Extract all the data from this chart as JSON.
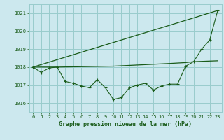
{
  "title": "Graphe pression niveau de la mer (hPa)",
  "background_color": "#cce8ee",
  "grid_color": "#99cccc",
  "line_color": "#1a5c1a",
  "xlim": [
    -0.5,
    23.5
  ],
  "ylim": [
    1015.5,
    1021.5
  ],
  "yticks": [
    1016,
    1017,
    1018,
    1019,
    1020,
    1021
  ],
  "xticks": [
    0,
    1,
    2,
    3,
    4,
    5,
    6,
    7,
    8,
    9,
    10,
    11,
    12,
    13,
    14,
    15,
    16,
    17,
    18,
    19,
    20,
    21,
    22,
    23
  ],
  "series1_x": [
    0,
    1,
    2,
    3,
    4,
    5,
    6,
    7,
    8,
    9,
    10,
    11,
    12,
    13,
    14,
    15,
    16,
    17,
    18,
    19,
    20,
    21,
    22,
    23
  ],
  "series1_y": [
    1018.0,
    1017.7,
    1017.95,
    1018.0,
    1017.2,
    1017.1,
    1016.95,
    1016.85,
    1017.3,
    1016.85,
    1016.2,
    1016.3,
    1016.85,
    1017.0,
    1017.1,
    1016.72,
    1016.95,
    1017.05,
    1017.05,
    1018.05,
    1018.3,
    1019.0,
    1019.5,
    1021.15
  ],
  "series2_x": [
    0,
    3,
    10,
    17,
    19,
    20,
    23
  ],
  "series2_y": [
    1018.0,
    1018.0,
    1018.05,
    1018.2,
    1018.25,
    1018.3,
    1018.35
  ],
  "series3_x": [
    0,
    23
  ],
  "series3_y": [
    1018.0,
    1021.15
  ],
  "xlabel_fontsize": 6,
  "tick_fontsize": 5
}
